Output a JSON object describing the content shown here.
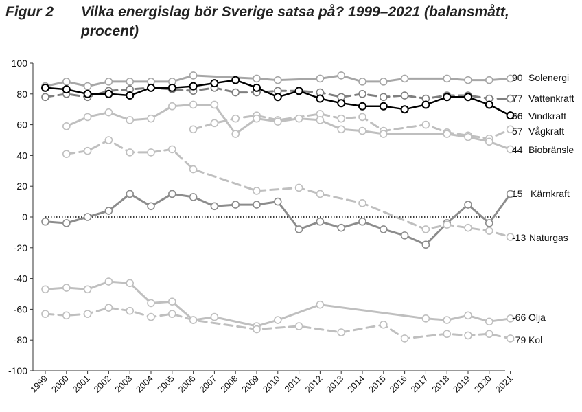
{
  "figure": {
    "label": "Figur 2",
    "title": "Vilka energislag bör Sverige satsa på? 1999–2021 (balansmått, procent)"
  },
  "chart_data": {
    "type": "line",
    "title": "Vilka energislag bör Sverige satsa på? 1999–2021 (balansmått, procent)",
    "xlabel": "",
    "ylabel": "",
    "ylim": [
      -100,
      100
    ],
    "yticks": [
      -100,
      -80,
      -60,
      -40,
      -20,
      0,
      20,
      40,
      60,
      80,
      100
    ],
    "x": [
      1999,
      2000,
      2001,
      2002,
      2003,
      2004,
      2005,
      2006,
      2007,
      2008,
      2009,
      2010,
      2011,
      2012,
      2013,
      2014,
      2015,
      2016,
      2017,
      2018,
      2019,
      2020,
      2021
    ],
    "grid": false,
    "legend": "end-labels-right",
    "zero_line": "dotted",
    "series": [
      {
        "name": "Solenergi",
        "end_value": "90",
        "color": "#a6a6a6",
        "style": "solid",
        "width": 3,
        "values": [
          85,
          88,
          85,
          88,
          88,
          88,
          88,
          92,
          null,
          null,
          90,
          89,
          null,
          90,
          92,
          88,
          88,
          90,
          null,
          90,
          89,
          89,
          90
        ]
      },
      {
        "name": "Vattenkraft",
        "end_value": "77",
        "color": "#7f7f7f",
        "style": "dashed",
        "width": 3,
        "values": [
          78,
          80,
          78,
          82,
          83,
          84,
          83,
          82,
          84,
          81,
          81,
          82,
          82,
          81,
          78,
          80,
          78,
          79,
          77,
          79,
          79,
          77,
          77
        ]
      },
      {
        "name": "Vindkraft",
        "end_value": "66",
        "color": "#000000",
        "style": "solid",
        "width": 2.5,
        "values": [
          84,
          83,
          80,
          80,
          79,
          84,
          84,
          85,
          87,
          89,
          84,
          78,
          82,
          77,
          74,
          72,
          72,
          70,
          73,
          78,
          78,
          73,
          66
        ]
      },
      {
        "name": "Vågkraft",
        "end_value": "57",
        "color": "#bfbfbf",
        "style": "dashed",
        "width": 3,
        "values": [
          null,
          null,
          null,
          null,
          null,
          null,
          null,
          57,
          61,
          64,
          66,
          63,
          null,
          67,
          64,
          65,
          56,
          null,
          60,
          55,
          53,
          51,
          57
        ]
      },
      {
        "name": "Biobränsle",
        "end_value": "44",
        "color": "#bfbfbf",
        "style": "solid",
        "width": 3,
        "values": [
          null,
          59,
          65,
          68,
          63,
          64,
          72,
          73,
          73,
          54,
          64,
          62,
          64,
          63,
          57,
          56,
          54,
          null,
          null,
          54,
          52,
          49,
          44
        ]
      },
      {
        "name": "Kärnkraft",
        "end_value": "15",
        "color": "#8c8c8c",
        "style": "solid",
        "width": 3,
        "values": [
          -3,
          -4,
          0,
          4,
          15,
          7,
          15,
          13,
          7,
          8,
          8,
          10,
          -8,
          -3,
          -7,
          -3,
          -8,
          -12,
          -18,
          -4,
          8,
          -4,
          15
        ]
      },
      {
        "name": "Naturgas",
        "end_value": "-13",
        "color": "#bfbfbf",
        "style": "dashed",
        "width": 3,
        "values": [
          null,
          41,
          43,
          50,
          42,
          42,
          44,
          31,
          null,
          null,
          17,
          null,
          19,
          15,
          null,
          9,
          null,
          null,
          -8,
          -5,
          -7,
          -9,
          -13
        ]
      },
      {
        "name": "Olja",
        "end_value": "-66",
        "color": "#bfbfbf",
        "style": "solid",
        "width": 3,
        "values": [
          -47,
          -46,
          -47,
          -42,
          -43,
          -56,
          -55,
          -67,
          -65,
          null,
          -71,
          -67,
          null,
          -57,
          null,
          null,
          null,
          null,
          -66,
          -67,
          -64,
          -68,
          -66
        ]
      },
      {
        "name": "Kol",
        "end_value": "-79",
        "color": "#bfbfbf",
        "style": "dashed",
        "width": 3,
        "values": [
          -63,
          -64,
          -63,
          -59,
          -61,
          -65,
          -63,
          -67,
          null,
          null,
          -73,
          null,
          -71,
          null,
          -75,
          null,
          -70,
          -79,
          null,
          -76,
          -77,
          -76,
          -79
        ]
      }
    ]
  }
}
